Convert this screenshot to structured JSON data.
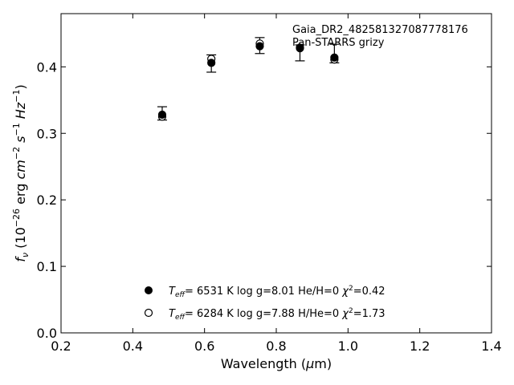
{
  "chart_data": {
    "type": "scatter",
    "xlabel": "Wavelength (μm)",
    "ylabel": "f_ν (10^−26 erg cm^−2 s^−1 Hz^−1)",
    "xlim": [
      0.2,
      1.4
    ],
    "ylim": [
      0.0,
      0.48
    ],
    "x_ticks": [
      "0.2",
      "0.4",
      "0.6",
      "0.8",
      "1.0",
      "1.2",
      "1.4"
    ],
    "y_ticks": [
      "0.0",
      "0.1",
      "0.2",
      "0.3",
      "0.4"
    ],
    "grid": false,
    "annotations": [
      "Gaia_DR2_482581327087778176",
      "Pan-STARRS grizy"
    ],
    "observed": {
      "x": [
        0.482,
        0.619,
        0.754,
        0.866,
        0.962
      ],
      "y": [
        0.33,
        0.405,
        0.432,
        0.421,
        0.42
      ],
      "yerr": [
        0.01,
        0.013,
        0.012,
        0.012,
        0.014
      ]
    },
    "legend_placement": "bottom-center",
    "series": [
      {
        "name": "T_eff=  6531 K  log g=8.01  He/H=0  χ²=0.42",
        "marker": "filled-circle",
        "x": [
          0.482,
          0.619,
          0.754,
          0.866,
          0.962
        ],
        "y": [
          0.328,
          0.406,
          0.431,
          0.428,
          0.414
        ]
      },
      {
        "name": "T_eff=  6284 K  log g=7.88  H/He=0  χ²=1.73",
        "marker": "open-circle",
        "x": [
          0.482,
          0.619,
          0.754,
          0.866,
          0.962
        ],
        "y": [
          0.325,
          0.412,
          0.435,
          0.429,
          0.411
        ]
      }
    ],
    "legend": {
      "entry1": {
        "prefix": "T",
        "sub": "eff",
        "mid": "=  6531 K  log g=8.01  He/H=0  ",
        "chi": "χ",
        "sup": "2",
        "tail": "=0.42"
      },
      "entry2": {
        "prefix": "T",
        "sub": "eff",
        "mid": "=  6284 K  log g=7.88  H/He=0  ",
        "chi": "χ",
        "sup": "2",
        "tail": "=1.73"
      }
    },
    "ylabel_parts": {
      "f": "f",
      "nu": "ν",
      "a": " (10",
      "e1": "−26",
      "b": " erg ",
      "cm": "cm",
      "e2": "−2",
      "s": " s",
      "e3": "−1",
      "hz": " Hz",
      "e4": "−1",
      "c": ")"
    },
    "xlabel_parts": {
      "a": "Wavelength (",
      "mu": "μ",
      "b": "m)"
    }
  }
}
